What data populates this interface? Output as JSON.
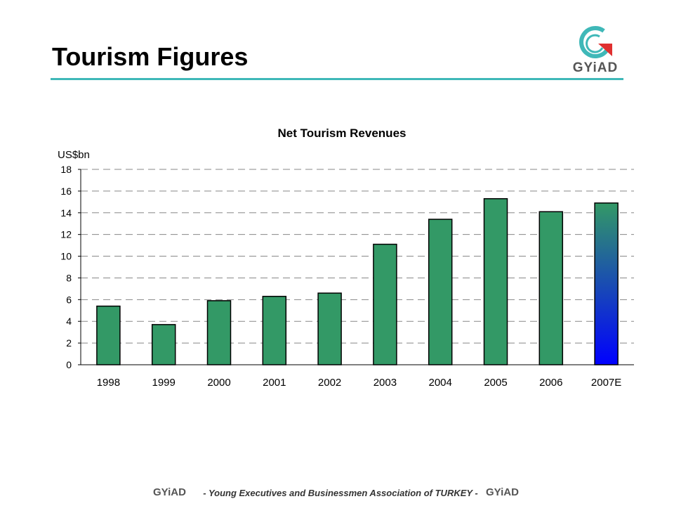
{
  "slide": {
    "title": "Tourism Figures",
    "logo_text": "GYiAD",
    "accent_color": "#3fb8b8",
    "logo_red": "#e03030"
  },
  "footer": {
    "text": "- Young Executives and Businessmen Association of TURKEY -",
    "logo_left": "GYiAD",
    "logo_right": "GYiAD"
  },
  "chart_data": {
    "type": "bar",
    "title": "Net Tourism Revenues",
    "ylabel": "US$bn",
    "xlabel": "",
    "ylim": [
      0,
      18
    ],
    "yticks": [
      0,
      2,
      4,
      6,
      8,
      10,
      12,
      14,
      16,
      18
    ],
    "grid": true,
    "categories": [
      "1998",
      "1999",
      "2000",
      "2001",
      "2002",
      "2003",
      "2004",
      "2005",
      "2006",
      "2007E"
    ],
    "values": [
      5.4,
      3.7,
      5.9,
      6.3,
      6.6,
      11.1,
      13.4,
      15.3,
      14.1,
      14.9
    ],
    "bar_color": "#339966",
    "highlight_index": 9,
    "highlight_gradient": [
      "#339966",
      "#0000ff"
    ]
  }
}
